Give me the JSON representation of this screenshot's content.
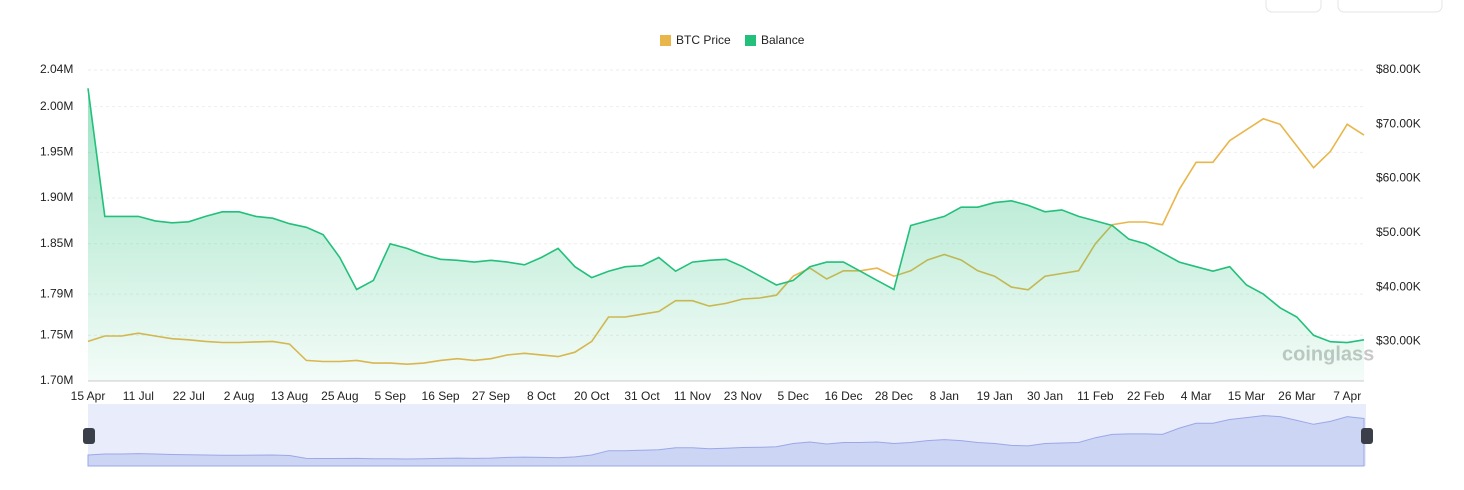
{
  "chart_data": {
    "type": "line",
    "watermark": "coinglass",
    "categories": [
      "15 Apr",
      null,
      null,
      "11 Jul",
      null,
      null,
      "22 Jul",
      null,
      null,
      "2 Aug",
      null,
      null,
      "13 Aug",
      null,
      null,
      "25 Aug",
      null,
      null,
      "5 Sep",
      null,
      null,
      "16 Sep",
      null,
      null,
      "27 Sep",
      null,
      null,
      "8 Oct",
      null,
      null,
      "20 Oct",
      null,
      null,
      "31 Oct",
      null,
      null,
      "11 Nov",
      null,
      null,
      "23 Nov",
      null,
      null,
      "5 Dec",
      null,
      null,
      "16 Dec",
      null,
      null,
      "28 Dec",
      null,
      null,
      "8 Jan",
      null,
      null,
      "19 Jan",
      null,
      null,
      "30 Jan",
      null,
      null,
      "11 Feb",
      null,
      null,
      "22 Feb",
      null,
      null,
      "4 Mar",
      null,
      null,
      "15 Mar",
      null,
      null,
      "26 Mar",
      null,
      null,
      "7 Apr",
      null
    ],
    "series": [
      {
        "name": "BTC Price",
        "color": "#e8b64a",
        "axis": "y2",
        "values": [
          30000,
          31000,
          31000,
          31500,
          31000,
          30500,
          30300,
          30000,
          29800,
          29800,
          29900,
          30000,
          29500,
          26500,
          26300,
          26300,
          26500,
          26000,
          26000,
          25800,
          26000,
          26500,
          26800,
          26500,
          26800,
          27500,
          27800,
          27500,
          27200,
          28000,
          30000,
          34500,
          34500,
          35000,
          35500,
          37500,
          37500,
          36500,
          37000,
          37800,
          38000,
          38500,
          42000,
          43500,
          41500,
          43000,
          43000,
          43500,
          42000,
          43000,
          45000,
          46000,
          45000,
          43000,
          42000,
          40000,
          39500,
          42000,
          42500,
          43000,
          48000,
          51500,
          52000,
          52000,
          51500,
          58000,
          63000,
          63000,
          67000,
          69000,
          71000,
          70000,
          66000,
          62000,
          65000,
          70000,
          68000
        ]
      },
      {
        "name": "Balance",
        "color": "#22c07a",
        "values": [
          2020000,
          1880000,
          1880000,
          1880000,
          1875000,
          1873000,
          1874000,
          1880000,
          1885000,
          1885000,
          1880000,
          1878000,
          1872000,
          1868000,
          1860000,
          1835000,
          1800000,
          1810000,
          1850000,
          1845000,
          1838000,
          1833000,
          1832000,
          1830000,
          1832000,
          1830000,
          1827000,
          1835000,
          1845000,
          1825000,
          1813000,
          1820000,
          1825000,
          1826000,
          1835000,
          1820000,
          1830000,
          1832000,
          1833000,
          1825000,
          1815000,
          1805000,
          1810000,
          1825000,
          1830000,
          1830000,
          1820000,
          1810000,
          1800000,
          1870000,
          1875000,
          1880000,
          1890000,
          1890000,
          1895000,
          1897000,
          1892000,
          1885000,
          1887000,
          1880000,
          1875000,
          1870000,
          1855000,
          1850000,
          1840000,
          1830000,
          1825000,
          1820000,
          1825000,
          1805000,
          1795000,
          1780000,
          1770000,
          1750000,
          1743000,
          1742000,
          1745000
        ]
      }
    ],
    "ylim": [
      1700000,
      2040000
    ],
    "yticks": [
      {
        "value": 1700000,
        "label": "1.70M"
      },
      {
        "value": 1750000,
        "label": "1.75M"
      },
      {
        "value": 1795000,
        "label": "1.79M"
      },
      {
        "value": 1850000,
        "label": "1.85M"
      },
      {
        "value": 1900000,
        "label": "1.90M"
      },
      {
        "value": 1950000,
        "label": "1.95M"
      },
      {
        "value": 2000000,
        "label": "2.00M"
      },
      {
        "value": 2040000,
        "label": "2.04M"
      }
    ],
    "y2lim": [
      22700,
      80000
    ],
    "y2ticks": [
      {
        "value": 30000,
        "label": "$30.00K"
      },
      {
        "value": 40000,
        "label": "$40.00K"
      },
      {
        "value": 50000,
        "label": "$50.00K"
      },
      {
        "value": 60000,
        "label": "$60.00K"
      },
      {
        "value": 70000,
        "label": "$70.00K"
      },
      {
        "value": 80000,
        "label": "$80.00K"
      }
    ],
    "grid": true
  }
}
